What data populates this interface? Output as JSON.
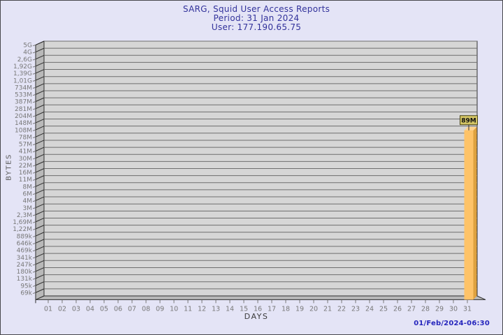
{
  "window": {
    "bg_color": "#e4e4f6",
    "border_color": "#47474d"
  },
  "chart_data": {
    "type": "bar",
    "title": "SARG, Squid User Access Reports",
    "period_line": "Period: 31 Jan 2024",
    "user_line": "User: 177.190.65.75",
    "xlabel": "DAYS",
    "ylabel": "BYTES",
    "y_scale": "logarithmic",
    "y_tick_labels": [
      "5G",
      "4G",
      "2,6G",
      "1,92G",
      "1,39G",
      "1,01G",
      "734M",
      "533M",
      "387M",
      "281M",
      "204M",
      "148M",
      "108M",
      "78M",
      "57M",
      "41M",
      "30M",
      "22M",
      "16M",
      "11M",
      "8M",
      "6M",
      "4M",
      "3M",
      "2,3M",
      "1,69M",
      "1,22M",
      "889k",
      "646k",
      "469k",
      "341k",
      "247k",
      "180k",
      "131k",
      "95k",
      "69k"
    ],
    "x_tick_labels": [
      "01",
      "02",
      "03",
      "04",
      "05",
      "06",
      "07",
      "08",
      "09",
      "10",
      "11",
      "12",
      "13",
      "14",
      "15",
      "16",
      "17",
      "18",
      "19",
      "20",
      "21",
      "22",
      "23",
      "24",
      "25",
      "26",
      "27",
      "28",
      "29",
      "30",
      "31"
    ],
    "bars": [
      {
        "day": "31",
        "value_label": "89M"
      }
    ],
    "footer_timestamp": "01/Feb/2024-06:30",
    "colors": {
      "title_text": "#32329b",
      "panel_fill": "#d6d6d6",
      "wall_fill": "#b9b9b9",
      "frame_stroke": "#2e2e2e",
      "gridline": "#6e6e6e",
      "tick_text": "#787878",
      "bar_front": "#fec368",
      "bar_side": "#dfa23f",
      "bar_top": "#ffd28c",
      "value_box_bg": "#d2c464",
      "value_box_border": "#4d4715",
      "value_text": "#101010",
      "timestamp_text": "#2626bd"
    }
  }
}
